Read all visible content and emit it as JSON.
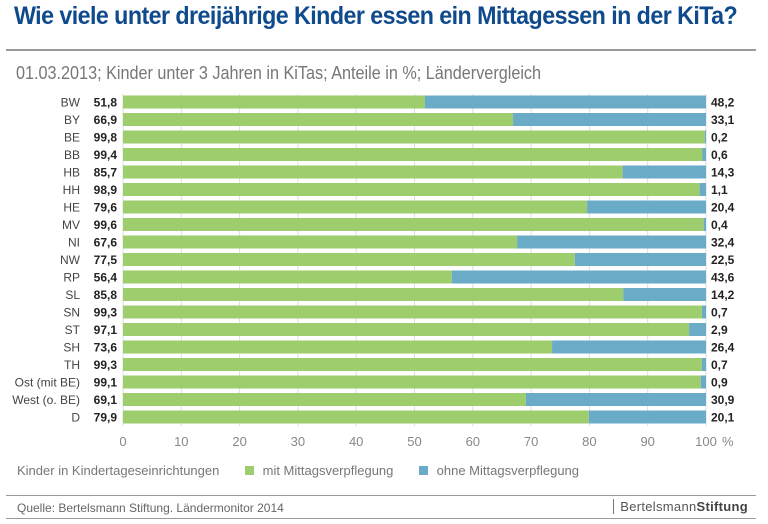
{
  "title": "Wie viele unter dreijährige Kinder essen ein Mittagessen in der KiTa?",
  "subtitle": "01.03.2013; Kinder unter 3 Jahren in KiTas; Anteile in %; Ländervergleich",
  "legend": {
    "label": "Kinder in Kindertageseinrichtungen",
    "items": [
      "mit Mittagsverpflegung",
      "ohne Mittagsverpflegung"
    ]
  },
  "source": "Quelle: Bertelsmann Stiftung. Ländermonitor 2014",
  "logo": {
    "part1": "Bertelsmann",
    "part2": "Stiftung"
  },
  "colors": {
    "title": "#0f4a8c",
    "mit": "#9dcd6c",
    "ohne": "#6aacc8"
  },
  "chart_data": {
    "type": "bar",
    "orientation": "horizontal",
    "stacked": true,
    "categories": [
      "BW",
      "BY",
      "BE",
      "BB",
      "HB",
      "HH",
      "HE",
      "MV",
      "NI",
      "NW",
      "RP",
      "SL",
      "SN",
      "ST",
      "SH",
      "TH",
      "Ost (mit BE)",
      "West (o. BE)",
      "D"
    ],
    "series": [
      {
        "name": "mit Mittagsverpflegung",
        "values": [
          51.8,
          66.9,
          99.8,
          99.4,
          85.7,
          98.9,
          79.6,
          99.6,
          67.6,
          77.5,
          56.4,
          85.8,
          99.3,
          97.1,
          73.6,
          99.3,
          99.1,
          69.1,
          79.9
        ]
      },
      {
        "name": "ohne Mittagsverpflegung",
        "values": [
          48.2,
          33.1,
          0.2,
          0.6,
          14.3,
          1.1,
          20.4,
          0.4,
          32.4,
          22.5,
          43.6,
          14.2,
          0.7,
          2.9,
          26.4,
          0.7,
          0.9,
          30.9,
          20.1
        ]
      }
    ],
    "labels_left": [
      "51,8",
      "66,9",
      "99,8",
      "99,4",
      "85,7",
      "98,9",
      "79,6",
      "99,6",
      "67,6",
      "77,5",
      "56,4",
      "85,8",
      "99,3",
      "97,1",
      "73,6",
      "99,3",
      "99,1",
      "69,1",
      "79,9"
    ],
    "labels_right": [
      "48,2",
      "33,1",
      "0,2",
      "0,6",
      "14,3",
      "1,1",
      "20,4",
      "0,4",
      "32,4",
      "22,5",
      "43,6",
      "14,2",
      "0,7",
      "2,9",
      "26,4",
      "0,7",
      "0,9",
      "30,9",
      "20,1"
    ],
    "xlim": [
      0,
      100
    ],
    "xticks": [
      "0",
      "10",
      "20",
      "30",
      "40",
      "50",
      "60",
      "70",
      "80",
      "90",
      "100"
    ],
    "xunit": "%",
    "grid": true,
    "legend_position": "bottom"
  }
}
